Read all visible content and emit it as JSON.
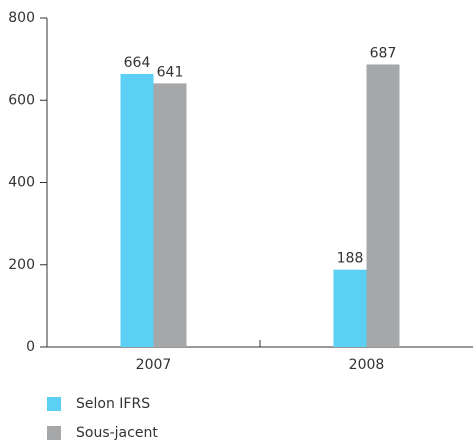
{
  "chart_data": {
    "type": "bar",
    "categories": [
      "2007",
      "2008"
    ],
    "series": [
      {
        "name": "Selon IFRS",
        "color": "#5ccff5",
        "values": [
          664,
          188
        ]
      },
      {
        "name": "Sous-jacent",
        "color": "#a6a7a9",
        "values": [
          641,
          687
        ]
      }
    ],
    "ylim": [
      0,
      800
    ],
    "yticks": [
      0,
      200,
      400,
      600,
      800
    ],
    "grid": false
  }
}
